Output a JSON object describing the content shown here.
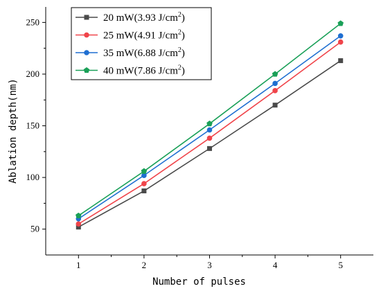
{
  "chart_data": {
    "type": "line",
    "title": "",
    "xlabel": "Number of pulses",
    "ylabel": "Ablation depth(nm)",
    "x": [
      1,
      2,
      3,
      4,
      5
    ],
    "xlim": [
      0.5,
      5.5
    ],
    "ylim": [
      25,
      265
    ],
    "xticks": [
      1,
      2,
      3,
      4,
      5
    ],
    "yticks": [
      50,
      100,
      150,
      200,
      250
    ],
    "grid": false,
    "legend_position": "top-left",
    "series": [
      {
        "name": "20 mW(3.93 J/cm²)",
        "legend_main": "20 mW(3.93 J/cm",
        "legend_sup": "2",
        "legend_tail": ")",
        "color": "#4a4a4a",
        "marker": "square",
        "values": [
          52,
          87,
          128,
          170,
          213
        ]
      },
      {
        "name": "25 mW(4.91 J/cm²)",
        "legend_main": "25 mW(4.91 J/cm",
        "legend_sup": "2",
        "legend_tail": ")",
        "color": "#f0444a",
        "marker": "circle",
        "values": [
          55,
          94,
          138,
          184,
          231
        ]
      },
      {
        "name": "35 mW(6.88 J/cm²)",
        "legend_main": "35 mW(6.88 J/cm",
        "legend_sup": "2",
        "legend_tail": ")",
        "color": "#1f6fd1",
        "marker": "circle",
        "values": [
          60,
          102,
          146,
          191,
          237
        ]
      },
      {
        "name": "40 mW(7.86 J/cm²)",
        "legend_main": "40 mW(7.86 J/cm",
        "legend_sup": "2",
        "legend_tail": ")",
        "color": "#1aa058",
        "marker": "pentagon",
        "values": [
          63,
          106,
          152,
          200,
          249
        ]
      }
    ]
  }
}
